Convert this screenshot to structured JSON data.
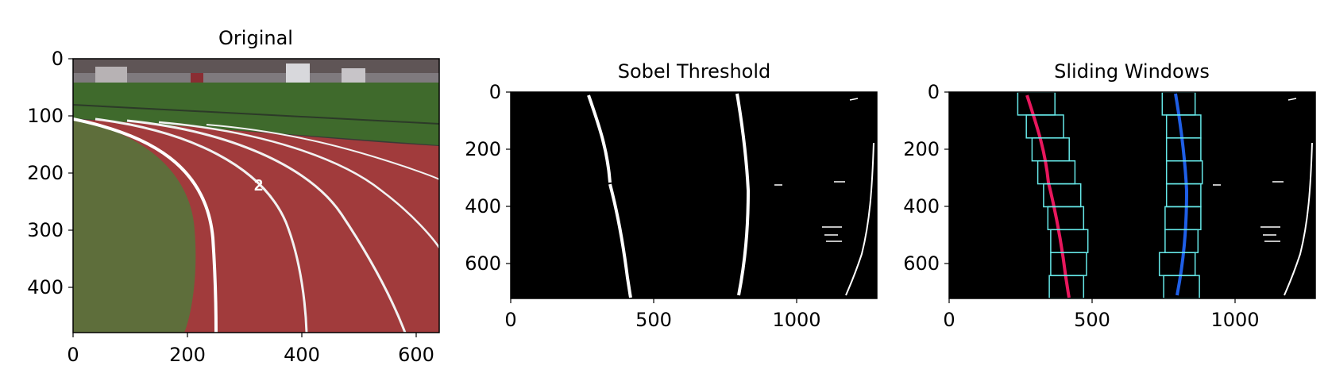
{
  "figure": {
    "panels": [
      {
        "title": "Original",
        "x_ticks": [
          "0",
          "200",
          "400",
          "600"
        ],
        "y_ticks": [
          "0",
          "100",
          "200",
          "300",
          "400"
        ],
        "xlim": [
          0,
          640
        ],
        "ylim": [
          480,
          0
        ]
      },
      {
        "title": "Sobel Threshold",
        "x_ticks": [
          "0",
          "500",
          "1000"
        ],
        "y_ticks": [
          "0",
          "200",
          "400",
          "600"
        ],
        "xlim": [
          0,
          1280
        ],
        "ylim": [
          720,
          0
        ]
      },
      {
        "title": "Sliding Windows",
        "x_ticks": [
          "0",
          "500",
          "1000"
        ],
        "y_ticks": [
          "0",
          "200",
          "400",
          "600"
        ],
        "xlim": [
          0,
          1280
        ],
        "ylim": [
          720,
          0
        ]
      }
    ]
  },
  "colors": {
    "track": "#a23c3c",
    "grass": "#5c6e3a",
    "field": "#3e6a2c",
    "lane_line": "#ffffff",
    "left_lane_pixels": "#e8175d",
    "right_lane_pixels": "#1f5fe6",
    "window_boxes": "#66e8e8",
    "background_binary": "#000000"
  },
  "chart_data": [
    {
      "type": "image",
      "title": "Original",
      "xlim": [
        0,
        640
      ],
      "ylim": [
        480,
        0
      ]
    },
    {
      "type": "image",
      "title": "Sobel Threshold",
      "xlim": [
        0,
        1280
      ],
      "ylim": [
        720,
        0
      ]
    },
    {
      "type": "image",
      "title": "Sliding Windows",
      "xlim": [
        0,
        1280
      ],
      "ylim": [
        720,
        0
      ],
      "windows": {
        "left": [
          {
            "x": [
              240,
              370
            ],
            "y": [
              0,
              80
            ]
          },
          {
            "x": [
              270,
              400
            ],
            "y": [
              80,
              160
            ]
          },
          {
            "x": [
              290,
              420
            ],
            "y": [
              160,
              240
            ]
          },
          {
            "x": [
              310,
              440
            ],
            "y": [
              240,
              320
            ]
          },
          {
            "x": [
              330,
              460
            ],
            "y": [
              320,
              400
            ]
          },
          {
            "x": [
              345,
              470
            ],
            "y": [
              400,
              480
            ]
          },
          {
            "x": [
              355,
              485
            ],
            "y": [
              480,
              560
            ]
          },
          {
            "x": [
              355,
              480
            ],
            "y": [
              560,
              640
            ]
          },
          {
            "x": [
              350,
              470
            ],
            "y": [
              640,
              720
            ]
          }
        ],
        "right": [
          {
            "x": [
              745,
              860
            ],
            "y": [
              0,
              80
            ]
          },
          {
            "x": [
              760,
              880
            ],
            "y": [
              80,
              160
            ]
          },
          {
            "x": [
              760,
              880
            ],
            "y": [
              160,
              240
            ]
          },
          {
            "x": [
              760,
              885
            ],
            "y": [
              240,
              320
            ]
          },
          {
            "x": [
              760,
              880
            ],
            "y": [
              320,
              400
            ]
          },
          {
            "x": [
              755,
              880
            ],
            "y": [
              400,
              480
            ]
          },
          {
            "x": [
              755,
              870
            ],
            "y": [
              480,
              560
            ]
          },
          {
            "x": [
              735,
              860
            ],
            "y": [
              560,
              640
            ]
          },
          {
            "x": [
              750,
              875
            ],
            "y": [
              640,
              720
            ]
          }
        ]
      }
    }
  ]
}
